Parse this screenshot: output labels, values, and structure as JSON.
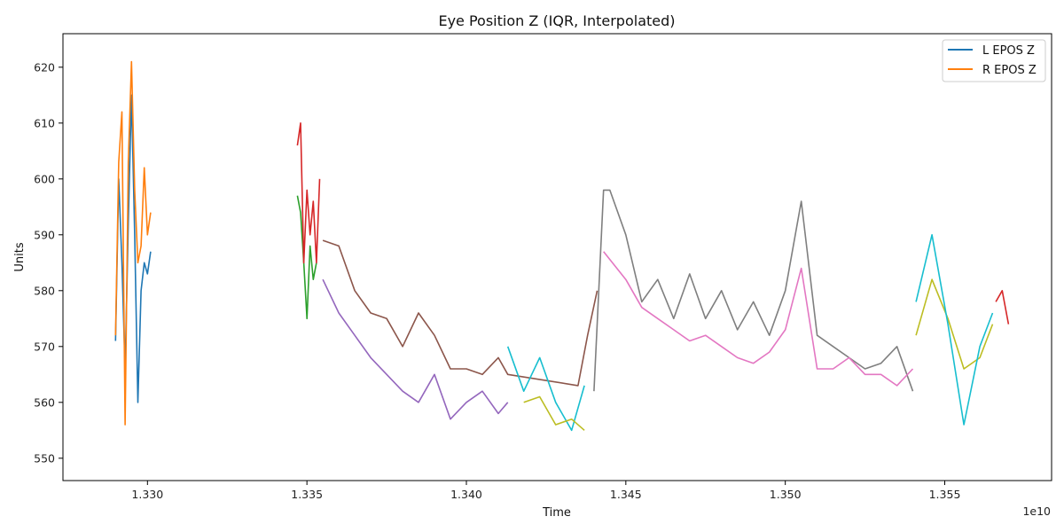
{
  "chart_data": {
    "type": "line",
    "title": "Eye Position Z (IQR, Interpolated)",
    "xlabel": "Time",
    "ylabel": "Units",
    "x_offset_label": "1e10",
    "xlim": [
      1.32735,
      1.35835
    ],
    "ylim": [
      546,
      626
    ],
    "x_ticks": [
      1.33,
      1.335,
      1.34,
      1.345,
      1.35,
      1.355
    ],
    "x_tick_labels": [
      "1.330",
      "1.335",
      "1.340",
      "1.345",
      "1.350",
      "1.355"
    ],
    "y_ticks": [
      550,
      560,
      570,
      580,
      590,
      600,
      610,
      620
    ],
    "y_tick_labels": [
      "550",
      "560",
      "570",
      "580",
      "590",
      "600",
      "610",
      "620"
    ],
    "grid": false,
    "legend": {
      "position": "top-right",
      "entries": [
        {
          "label": "L EPOS Z",
          "color": "#1f77b4"
        },
        {
          "label": "R EPOS Z",
          "color": "#ff7f0e"
        }
      ]
    },
    "series": [
      {
        "name": "L EPOS Z",
        "color": "#1f77b4",
        "x": [
          1.329,
          1.3291,
          1.3292,
          1.3293,
          1.3294,
          1.3295,
          1.3296,
          1.3297,
          1.3298,
          1.3299,
          1.33,
          1.3301
        ],
        "y": [
          571,
          600,
          585,
          566,
          592,
          615,
          590,
          560,
          580,
          585,
          583,
          587
        ]
      },
      {
        "name": "R EPOS Z",
        "color": "#ff7f0e",
        "x": [
          1.329,
          1.3291,
          1.3292,
          1.3293,
          1.3294,
          1.3295,
          1.3296,
          1.3297,
          1.3298,
          1.3299,
          1.33,
          1.3301
        ],
        "y": [
          572,
          603,
          612,
          556,
          603,
          621,
          598,
          585,
          588,
          602,
          590,
          594
        ]
      },
      {
        "color": "#2ca02c",
        "x": [
          1.3347,
          1.3348,
          1.3349,
          1.335,
          1.3351,
          1.3352,
          1.3353
        ],
        "y": [
          597,
          594,
          585,
          575,
          588,
          582,
          585
        ]
      },
      {
        "color": "#d62728",
        "x": [
          1.3347,
          1.3348,
          1.3349,
          1.335,
          1.3351,
          1.3352,
          1.3353,
          1.3354
        ],
        "y": [
          606,
          610,
          585,
          598,
          590,
          596,
          585,
          600
        ]
      },
      {
        "color": "#9467bd",
        "x": [
          1.3355,
          1.336,
          1.3365,
          1.337,
          1.3375,
          1.338,
          1.3385,
          1.339,
          1.3395,
          1.34,
          1.3405,
          1.341,
          1.3413
        ],
        "y": [
          582,
          576,
          572,
          568,
          565,
          562,
          560,
          565,
          557,
          560,
          562,
          558,
          560
        ]
      },
      {
        "color": "#8c564b",
        "x": [
          1.3355,
          1.336,
          1.3365,
          1.337,
          1.3375,
          1.338,
          1.3385,
          1.339,
          1.3395,
          1.34,
          1.3405,
          1.341,
          1.3413,
          1.3435,
          1.3438,
          1.3441
        ],
        "y": [
          589,
          588,
          580,
          576,
          575,
          570,
          576,
          572,
          566,
          566,
          565,
          568,
          565,
          563,
          572,
          580
        ]
      },
      {
        "color": "#17becf",
        "x": [
          1.3413,
          1.3418,
          1.3423,
          1.3428,
          1.3433,
          1.3437
        ],
        "y": [
          570,
          562,
          568,
          560,
          555,
          563
        ]
      },
      {
        "color": "#bcbd22",
        "x": [
          1.3418,
          1.3423,
          1.3428,
          1.3433,
          1.3437
        ],
        "y": [
          560,
          561,
          556,
          557,
          555
        ]
      },
      {
        "color": "#7f7f7f",
        "x": [
          1.344,
          1.3443,
          1.3445,
          1.345,
          1.3455,
          1.346,
          1.3465,
          1.347,
          1.3475,
          1.348,
          1.3485,
          1.349,
          1.3495,
          1.35,
          1.3505,
          1.351,
          1.3515,
          1.352,
          1.3525,
          1.353,
          1.3535,
          1.354
        ],
        "y": [
          562,
          598,
          598,
          590,
          578,
          582,
          575,
          583,
          575,
          580,
          573,
          578,
          572,
          580,
          596,
          572,
          570,
          568,
          566,
          567,
          570,
          562
        ]
      },
      {
        "color": "#e377c2",
        "x": [
          1.3443,
          1.345,
          1.3455,
          1.346,
          1.3465,
          1.347,
          1.3475,
          1.348,
          1.3485,
          1.349,
          1.3495,
          1.35,
          1.3505,
          1.351,
          1.3515,
          1.352,
          1.3525,
          1.353,
          1.3535,
          1.354
        ],
        "y": [
          587,
          582,
          577,
          575,
          573,
          571,
          572,
          570,
          568,
          567,
          569,
          573,
          584,
          566,
          566,
          568,
          565,
          565,
          563,
          566
        ]
      },
      {
        "color": "#bcbd22",
        "x": [
          1.3541,
          1.3546,
          1.3551,
          1.3556,
          1.3561,
          1.3565
        ],
        "y": [
          572,
          582,
          575,
          566,
          568,
          574
        ]
      },
      {
        "color": "#17becf",
        "x": [
          1.3541,
          1.3546,
          1.3551,
          1.3556,
          1.3561,
          1.3565
        ],
        "y": [
          578,
          590,
          574,
          556,
          570,
          576
        ]
      },
      {
        "color": "#d62728",
        "x": [
          1.3566,
          1.3568,
          1.357
        ],
        "y": [
          578,
          580,
          574
        ]
      }
    ]
  }
}
